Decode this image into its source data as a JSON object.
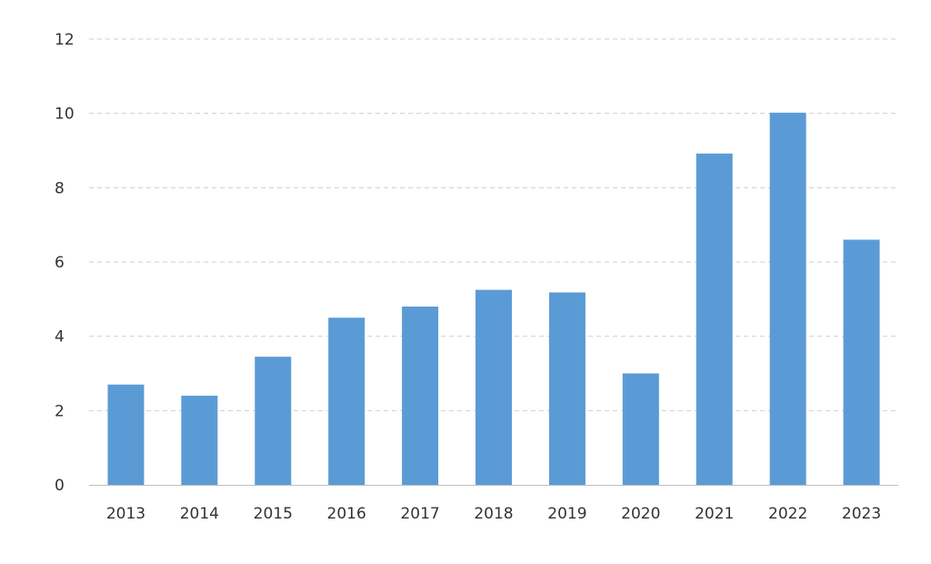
{
  "chart_data": {
    "type": "bar",
    "title": "",
    "xlabel": "",
    "ylabel": "",
    "categories": [
      "2013",
      "2014",
      "2015",
      "2016",
      "2017",
      "2018",
      "2019",
      "2020",
      "2021",
      "2022",
      "2023"
    ],
    "values": [
      2.7,
      2.4,
      3.45,
      4.5,
      4.8,
      5.25,
      5.18,
      3.0,
      8.92,
      10.02,
      6.6
    ],
    "ylim": [
      0,
      12
    ],
    "yticks": [
      0,
      2,
      4,
      6,
      8,
      10,
      12
    ],
    "ytick_labels": [
      "0",
      "2",
      "4",
      "6",
      "8",
      "10",
      "12"
    ],
    "grid": true,
    "legend": "none",
    "bar_color": "#5b9bd5"
  }
}
